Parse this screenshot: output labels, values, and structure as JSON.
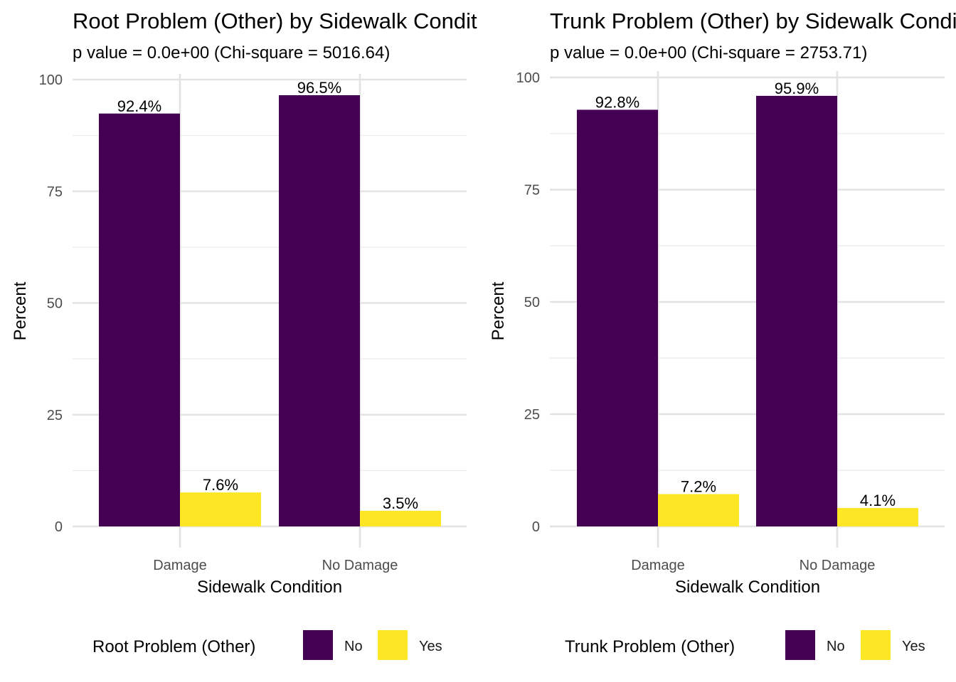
{
  "chart_data": [
    {
      "type": "bar",
      "title": "Root Problem (Other) by Sidewalk Condition",
      "subtitle": "p value = 0.0e+00 (Chi-square = 5016.64)",
      "xlabel": "Sidewalk Condition",
      "ylabel": "Percent",
      "ylim": [
        0,
        100
      ],
      "yticks": [
        "0",
        "25",
        "50",
        "75",
        "100"
      ],
      "categories": [
        "Damage",
        "No Damage"
      ],
      "series": [
        {
          "name": "No",
          "values": [
            92.4,
            96.5
          ],
          "labels": [
            "92.4%",
            "96.5%"
          ],
          "color": "#440154"
        },
        {
          "name": "Yes",
          "values": [
            7.6,
            3.5
          ],
          "labels": [
            "7.6%",
            "3.5%"
          ],
          "color": "#FDE725"
        }
      ],
      "legend_title": "Root Problem (Other)",
      "legend_position": "bottom",
      "grid": true
    },
    {
      "type": "bar",
      "title": "Trunk Problem (Other) by Sidewalk Condition",
      "subtitle": "p value = 0.0e+00 (Chi-square = 2753.71)",
      "xlabel": "Sidewalk Condition",
      "ylabel": "Percent",
      "ylim": [
        0,
        100
      ],
      "yticks": [
        "0",
        "25",
        "50",
        "75",
        "100"
      ],
      "categories": [
        "Damage",
        "No Damage"
      ],
      "series": [
        {
          "name": "No",
          "values": [
            92.8,
            95.9
          ],
          "labels": [
            "92.8%",
            "95.9%"
          ],
          "color": "#440154"
        },
        {
          "name": "Yes",
          "values": [
            7.2,
            4.1
          ],
          "labels": [
            "7.2%",
            "4.1%"
          ],
          "color": "#FDE725"
        }
      ],
      "legend_title": "Trunk Problem (Other)",
      "legend_position": "bottom",
      "grid": true
    }
  ]
}
